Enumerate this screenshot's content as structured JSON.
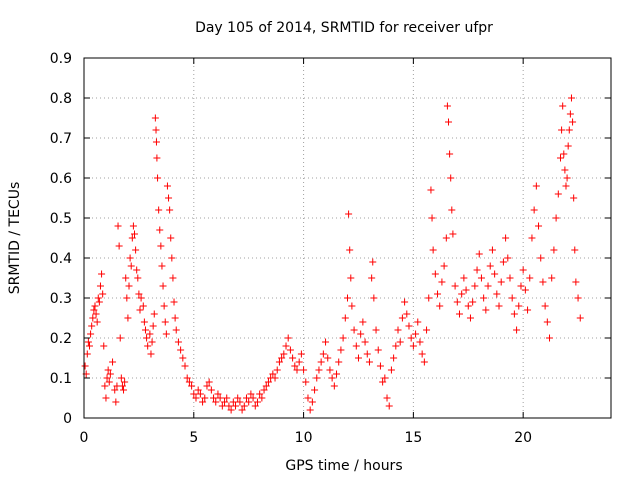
{
  "chart_data": {
    "type": "scatter",
    "title": "Day 105 of 2014, SRMTID for receiver ufpr",
    "xlabel": "GPS time / hours",
    "ylabel": "SRMTID / TECUs",
    "xlim": [
      0,
      24
    ],
    "ylim": [
      0,
      0.9
    ],
    "xticks": [
      0,
      5,
      10,
      15,
      20
    ],
    "xtick_labels": [
      "0",
      "5",
      "10",
      "15",
      "20"
    ],
    "yticks": [
      0,
      0.1,
      0.2,
      0.3,
      0.4,
      0.5,
      0.6,
      0.7,
      0.8,
      0.9
    ],
    "ytick_labels": [
      "0",
      "0.1",
      "0.2",
      "0.3",
      "0.4",
      "0.5",
      "0.6",
      "0.7",
      "0.8",
      "0.9"
    ],
    "grid": true,
    "marker": "+",
    "series": [
      {
        "name": "SRMTID",
        "color": "#ff0000",
        "points": [
          [
            0.05,
            0.13
          ],
          [
            0.1,
            0.11
          ],
          [
            0.15,
            0.16
          ],
          [
            0.2,
            0.19
          ],
          [
            0.25,
            0.18
          ],
          [
            0.3,
            0.21
          ],
          [
            0.35,
            0.23
          ],
          [
            0.4,
            0.25
          ],
          [
            0.45,
            0.27
          ],
          [
            0.5,
            0.28
          ],
          [
            0.55,
            0.26
          ],
          [
            0.6,
            0.24
          ],
          [
            0.65,
            0.3
          ],
          [
            0.7,
            0.29
          ],
          [
            0.75,
            0.33
          ],
          [
            0.8,
            0.36
          ],
          [
            0.85,
            0.31
          ],
          [
            0.9,
            0.18
          ],
          [
            0.95,
            0.08
          ],
          [
            1.0,
            0.05
          ],
          [
            1.05,
            0.1
          ],
          [
            1.1,
            0.12
          ],
          [
            1.15,
            0.09
          ],
          [
            1.2,
            0.11
          ],
          [
            1.3,
            0.14
          ],
          [
            1.4,
            0.07
          ],
          [
            1.45,
            0.04
          ],
          [
            1.5,
            0.08
          ],
          [
            1.55,
            0.48
          ],
          [
            1.6,
            0.43
          ],
          [
            1.65,
            0.2
          ],
          [
            1.7,
            0.1
          ],
          [
            1.75,
            0.08
          ],
          [
            1.8,
            0.07
          ],
          [
            1.85,
            0.09
          ],
          [
            1.9,
            0.35
          ],
          [
            1.95,
            0.3
          ],
          [
            2.0,
            0.25
          ],
          [
            2.05,
            0.33
          ],
          [
            2.1,
            0.4
          ],
          [
            2.15,
            0.38
          ],
          [
            2.2,
            0.45
          ],
          [
            2.25,
            0.48
          ],
          [
            2.3,
            0.46
          ],
          [
            2.35,
            0.42
          ],
          [
            2.4,
            0.37
          ],
          [
            2.45,
            0.35
          ],
          [
            2.5,
            0.31
          ],
          [
            2.55,
            0.27
          ],
          [
            2.6,
            0.3
          ],
          [
            2.7,
            0.28
          ],
          [
            2.75,
            0.24
          ],
          [
            2.8,
            0.22
          ],
          [
            2.85,
            0.2
          ],
          [
            2.9,
            0.18
          ],
          [
            3.0,
            0.21
          ],
          [
            3.05,
            0.16
          ],
          [
            3.1,
            0.19
          ],
          [
            3.15,
            0.23
          ],
          [
            3.2,
            0.26
          ],
          [
            3.25,
            0.75
          ],
          [
            3.28,
            0.72
          ],
          [
            3.3,
            0.69
          ],
          [
            3.32,
            0.65
          ],
          [
            3.35,
            0.6
          ],
          [
            3.4,
            0.52
          ],
          [
            3.45,
            0.47
          ],
          [
            3.5,
            0.43
          ],
          [
            3.55,
            0.38
          ],
          [
            3.6,
            0.33
          ],
          [
            3.65,
            0.28
          ],
          [
            3.7,
            0.24
          ],
          [
            3.75,
            0.21
          ],
          [
            3.8,
            0.58
          ],
          [
            3.85,
            0.55
          ],
          [
            3.9,
            0.52
          ],
          [
            3.95,
            0.45
          ],
          [
            4.0,
            0.4
          ],
          [
            4.05,
            0.35
          ],
          [
            4.1,
            0.29
          ],
          [
            4.15,
            0.25
          ],
          [
            4.2,
            0.22
          ],
          [
            4.3,
            0.19
          ],
          [
            4.4,
            0.17
          ],
          [
            4.5,
            0.15
          ],
          [
            4.6,
            0.13
          ],
          [
            4.7,
            0.1
          ],
          [
            4.8,
            0.09
          ],
          [
            4.9,
            0.08
          ],
          [
            5.0,
            0.06
          ],
          [
            5.1,
            0.05
          ],
          [
            5.2,
            0.07
          ],
          [
            5.3,
            0.06
          ],
          [
            5.4,
            0.04
          ],
          [
            5.5,
            0.05
          ],
          [
            5.6,
            0.08
          ],
          [
            5.7,
            0.09
          ],
          [
            5.8,
            0.07
          ],
          [
            5.9,
            0.05
          ],
          [
            6.0,
            0.04
          ],
          [
            6.1,
            0.06
          ],
          [
            6.2,
            0.05
          ],
          [
            6.3,
            0.03
          ],
          [
            6.4,
            0.04
          ],
          [
            6.5,
            0.05
          ],
          [
            6.6,
            0.03
          ],
          [
            6.7,
            0.02
          ],
          [
            6.8,
            0.04
          ],
          [
            6.9,
            0.03
          ],
          [
            7.0,
            0.05
          ],
          [
            7.1,
            0.04
          ],
          [
            7.2,
            0.02
          ],
          [
            7.3,
            0.03
          ],
          [
            7.4,
            0.05
          ],
          [
            7.5,
            0.04
          ],
          [
            7.6,
            0.06
          ],
          [
            7.7,
            0.05
          ],
          [
            7.8,
            0.03
          ],
          [
            7.9,
            0.04
          ],
          [
            8.0,
            0.06
          ],
          [
            8.1,
            0.05
          ],
          [
            8.2,
            0.07
          ],
          [
            8.3,
            0.08
          ],
          [
            8.4,
            0.09
          ],
          [
            8.5,
            0.1
          ],
          [
            8.6,
            0.11
          ],
          [
            8.7,
            0.1
          ],
          [
            8.8,
            0.12
          ],
          [
            8.9,
            0.14
          ],
          [
            9.0,
            0.15
          ],
          [
            9.1,
            0.16
          ],
          [
            9.2,
            0.18
          ],
          [
            9.3,
            0.2
          ],
          [
            9.4,
            0.17
          ],
          [
            9.5,
            0.15
          ],
          [
            9.6,
            0.13
          ],
          [
            9.7,
            0.12
          ],
          [
            9.8,
            0.14
          ],
          [
            9.9,
            0.16
          ],
          [
            10.0,
            0.12
          ],
          [
            10.1,
            0.09
          ],
          [
            10.2,
            0.05
          ],
          [
            10.3,
            0.02
          ],
          [
            10.4,
            0.04
          ],
          [
            10.5,
            0.07
          ],
          [
            10.6,
            0.1
          ],
          [
            10.7,
            0.12
          ],
          [
            10.8,
            0.14
          ],
          [
            10.9,
            0.16
          ],
          [
            11.0,
            0.19
          ],
          [
            11.1,
            0.15
          ],
          [
            11.2,
            0.12
          ],
          [
            11.3,
            0.1
          ],
          [
            11.4,
            0.08
          ],
          [
            11.5,
            0.11
          ],
          [
            11.6,
            0.14
          ],
          [
            11.7,
            0.17
          ],
          [
            11.8,
            0.2
          ],
          [
            11.9,
            0.25
          ],
          [
            12.0,
            0.3
          ],
          [
            12.05,
            0.51
          ],
          [
            12.1,
            0.42
          ],
          [
            12.15,
            0.35
          ],
          [
            12.2,
            0.28
          ],
          [
            12.3,
            0.22
          ],
          [
            12.4,
            0.18
          ],
          [
            12.5,
            0.15
          ],
          [
            12.6,
            0.21
          ],
          [
            12.7,
            0.24
          ],
          [
            12.8,
            0.19
          ],
          [
            12.9,
            0.16
          ],
          [
            13.0,
            0.14
          ],
          [
            13.1,
            0.35
          ],
          [
            13.15,
            0.39
          ],
          [
            13.2,
            0.3
          ],
          [
            13.3,
            0.22
          ],
          [
            13.4,
            0.17
          ],
          [
            13.5,
            0.13
          ],
          [
            13.6,
            0.09
          ],
          [
            13.7,
            0.1
          ],
          [
            13.8,
            0.05
          ],
          [
            13.9,
            0.03
          ],
          [
            14.0,
            0.12
          ],
          [
            14.1,
            0.15
          ],
          [
            14.2,
            0.18
          ],
          [
            14.3,
            0.22
          ],
          [
            14.4,
            0.19
          ],
          [
            14.5,
            0.25
          ],
          [
            14.6,
            0.29
          ],
          [
            14.7,
            0.26
          ],
          [
            14.8,
            0.23
          ],
          [
            14.9,
            0.2
          ],
          [
            15.0,
            0.18
          ],
          [
            15.1,
            0.21
          ],
          [
            15.2,
            0.24
          ],
          [
            15.3,
            0.19
          ],
          [
            15.4,
            0.16
          ],
          [
            15.5,
            0.14
          ],
          [
            15.6,
            0.22
          ],
          [
            15.7,
            0.3
          ],
          [
            15.8,
            0.57
          ],
          [
            15.85,
            0.5
          ],
          [
            15.9,
            0.42
          ],
          [
            16.0,
            0.36
          ],
          [
            16.1,
            0.31
          ],
          [
            16.2,
            0.28
          ],
          [
            16.3,
            0.34
          ],
          [
            16.4,
            0.38
          ],
          [
            16.5,
            0.45
          ],
          [
            16.55,
            0.78
          ],
          [
            16.6,
            0.74
          ],
          [
            16.65,
            0.66
          ],
          [
            16.7,
            0.6
          ],
          [
            16.75,
            0.52
          ],
          [
            16.8,
            0.46
          ],
          [
            16.9,
            0.33
          ],
          [
            17.0,
            0.29
          ],
          [
            17.1,
            0.26
          ],
          [
            17.2,
            0.31
          ],
          [
            17.3,
            0.35
          ],
          [
            17.4,
            0.32
          ],
          [
            17.5,
            0.28
          ],
          [
            17.6,
            0.25
          ],
          [
            17.7,
            0.29
          ],
          [
            17.8,
            0.33
          ],
          [
            17.9,
            0.37
          ],
          [
            18.0,
            0.41
          ],
          [
            18.1,
            0.35
          ],
          [
            18.2,
            0.3
          ],
          [
            18.3,
            0.27
          ],
          [
            18.4,
            0.33
          ],
          [
            18.5,
            0.38
          ],
          [
            18.6,
            0.42
          ],
          [
            18.7,
            0.36
          ],
          [
            18.8,
            0.31
          ],
          [
            18.9,
            0.28
          ],
          [
            19.0,
            0.34
          ],
          [
            19.1,
            0.39
          ],
          [
            19.2,
            0.45
          ],
          [
            19.3,
            0.4
          ],
          [
            19.4,
            0.35
          ],
          [
            19.5,
            0.3
          ],
          [
            19.6,
            0.26
          ],
          [
            19.7,
            0.22
          ],
          [
            19.8,
            0.28
          ],
          [
            19.9,
            0.33
          ],
          [
            20.0,
            0.37
          ],
          [
            20.1,
            0.32
          ],
          [
            20.2,
            0.27
          ],
          [
            20.3,
            0.35
          ],
          [
            20.4,
            0.45
          ],
          [
            20.5,
            0.52
          ],
          [
            20.6,
            0.58
          ],
          [
            20.7,
            0.48
          ],
          [
            20.8,
            0.4
          ],
          [
            20.9,
            0.34
          ],
          [
            21.0,
            0.28
          ],
          [
            21.1,
            0.24
          ],
          [
            21.2,
            0.2
          ],
          [
            21.3,
            0.35
          ],
          [
            21.4,
            0.42
          ],
          [
            21.5,
            0.5
          ],
          [
            21.6,
            0.56
          ],
          [
            21.7,
            0.65
          ],
          [
            21.75,
            0.72
          ],
          [
            21.8,
            0.78
          ],
          [
            21.85,
            0.66
          ],
          [
            21.9,
            0.62
          ],
          [
            21.95,
            0.58
          ],
          [
            22.0,
            0.6
          ],
          [
            22.05,
            0.68
          ],
          [
            22.1,
            0.72
          ],
          [
            22.15,
            0.76
          ],
          [
            22.2,
            0.8
          ],
          [
            22.25,
            0.74
          ],
          [
            22.3,
            0.55
          ],
          [
            22.35,
            0.42
          ],
          [
            22.4,
            0.34
          ],
          [
            22.5,
            0.3
          ],
          [
            22.6,
            0.25
          ]
        ]
      }
    ]
  }
}
